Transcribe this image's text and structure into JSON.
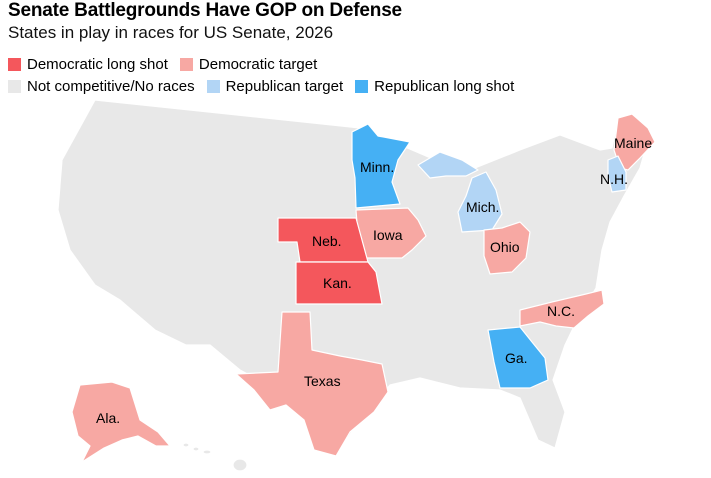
{
  "title": "Senate Battlegrounds Have GOP on Defense",
  "subtitle": "States in play in races for US Senate, 2026",
  "colors": {
    "dem_long_shot": "#f4575c",
    "dem_target": "#f7a8a3",
    "not_competitive": "#e8e8e8",
    "rep_target": "#b2d5f5",
    "rep_long_shot": "#45b0f4"
  },
  "legend": [
    {
      "key": "dem_long_shot",
      "label": "Democratic long shot"
    },
    {
      "key": "dem_target",
      "label": "Democratic target"
    },
    {
      "key": "not_competitive",
      "label": "Not competitive/No races"
    },
    {
      "key": "rep_target",
      "label": "Republican target"
    },
    {
      "key": "rep_long_shot",
      "label": "Republican long shot"
    }
  ],
  "states": [
    {
      "name": "Nebraska",
      "label": "Neb.",
      "category": "dem_long_shot"
    },
    {
      "name": "Kansas",
      "label": "Kan.",
      "category": "dem_long_shot"
    },
    {
      "name": "Iowa",
      "label": "Iowa",
      "category": "dem_target"
    },
    {
      "name": "Ohio",
      "label": "Ohio",
      "category": "dem_target"
    },
    {
      "name": "Texas",
      "label": "Texas",
      "category": "dem_target"
    },
    {
      "name": "North Carolina",
      "label": "N.C.",
      "category": "dem_target"
    },
    {
      "name": "Maine",
      "label": "Maine",
      "category": "dem_target"
    },
    {
      "name": "Alaska",
      "label": "Ala.",
      "category": "dem_target"
    },
    {
      "name": "Michigan",
      "label": "Mich.",
      "category": "rep_target"
    },
    {
      "name": "New Hampshire",
      "label": "N.H.",
      "category": "rep_target"
    },
    {
      "name": "Minnesota",
      "label": "Minn.",
      "category": "rep_long_shot"
    },
    {
      "name": "Georgia",
      "label": "Ga.",
      "category": "rep_long_shot"
    }
  ]
}
